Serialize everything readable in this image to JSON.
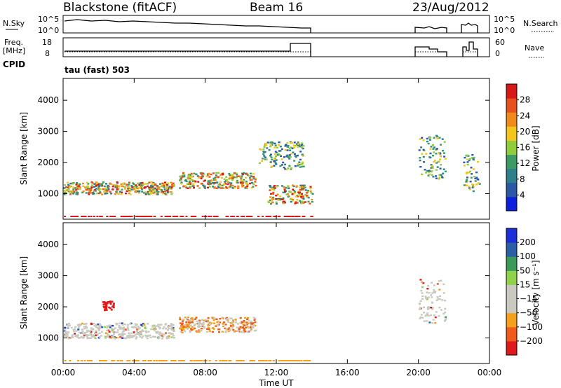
{
  "header": {
    "station": "Blackstone (fitACF)",
    "beam": "Beam 16",
    "date": "23/Aug/2012"
  },
  "side_labels": {
    "nsky": "N.Sky",
    "nsearch": "N.Search",
    "freq_line1": "Freq.",
    "freq_line2": "[MHz]",
    "nave": "Nave",
    "cpid": "CPID",
    "cpid_value": "tau (fast) 503"
  },
  "noise_axis": {
    "left_top": "10^5",
    "left_bottom": "10^0",
    "right_top": "10^5",
    "right_bottom": "10^0"
  },
  "freq_axis": {
    "left_top": "18",
    "left_bottom": "8",
    "right_top": "60",
    "right_bottom": "0"
  },
  "x_axis": {
    "label": "Time UT",
    "ticks": [
      "00:00",
      "04:00",
      "08:00",
      "12:00",
      "16:00",
      "20:00",
      "00:00"
    ],
    "tick_hours": [
      0,
      4,
      8,
      12,
      16,
      20,
      24
    ]
  },
  "colors": {
    "power_scale": [
      "#0b1fdc",
      "#2a58a6",
      "#2e7f8c",
      "#3c9a64",
      "#8fcd3a",
      "#f5c51e",
      "#f08a1a",
      "#e8501c",
      "#d81717"
    ],
    "velocity_scale": [
      "#e01a1a",
      "#f05a1a",
      "#f5a01a",
      "#c9c9bf",
      "#c9c9bf",
      "#8fd34a",
      "#3a9a58",
      "#2a5fa8",
      "#1a2fd8"
    ]
  },
  "chart_data": [
    {
      "type": "heatmap",
      "name": "power",
      "ylabel": "Slant Range [km]",
      "xlabel": "",
      "xlim": [
        0,
        24
      ],
      "ylim": [
        180,
        4700
      ],
      "yticks": [
        1000,
        2000,
        3000,
        4000
      ],
      "colorbar": {
        "label": "Power [dB]",
        "range": [
          0,
          32
        ],
        "ticks": [
          "4",
          "8",
          "12",
          "16",
          "20",
          "24",
          "28"
        ]
      },
      "features": [
        {
          "t0": 0.0,
          "t1": 6.2,
          "r0": 1000,
          "r1": 1400,
          "level": "high"
        },
        {
          "t0": 6.5,
          "t1": 10.8,
          "r0": 1200,
          "r1": 1700,
          "level": "high"
        },
        {
          "t0": 11.5,
          "t1": 14.0,
          "r0": 700,
          "r1": 1300,
          "level": "high"
        },
        {
          "t0": 11.0,
          "t1": 13.5,
          "r0": 1800,
          "r1": 2700,
          "level": "medium"
        },
        {
          "t0": 20.0,
          "t1": 21.5,
          "r0": 1500,
          "r1": 2900,
          "level": "medium"
        },
        {
          "t0": 22.5,
          "t1": 23.4,
          "r0": 1100,
          "r1": 2300,
          "level": "medium"
        }
      ]
    },
    {
      "type": "heatmap",
      "name": "velocity",
      "ylabel": "Slant Range [km]",
      "xlabel": "Time UT",
      "xlim": [
        0,
        24
      ],
      "ylim": [
        180,
        4700
      ],
      "yticks": [
        1000,
        2000,
        3000,
        4000
      ],
      "colorbar": {
        "label": "Velocity [m s⁻¹]",
        "range": [
          -250,
          250
        ],
        "ticks": [
          "200",
          "100",
          "50",
          "15",
          "−15",
          "−50",
          "−100",
          "−200"
        ]
      },
      "features": [
        {
          "t0": 0.0,
          "t1": 6.2,
          "r0": 1000,
          "r1": 1500,
          "level": "near-zero"
        },
        {
          "t0": 6.5,
          "t1": 10.8,
          "r0": 1200,
          "r1": 1700,
          "level": "negative"
        },
        {
          "t0": 2.2,
          "t1": 2.8,
          "r0": 1900,
          "r1": 2200,
          "level": "strong-negative"
        },
        {
          "t0": 20.0,
          "t1": 21.5,
          "r0": 1500,
          "r1": 2900,
          "level": "near-zero"
        }
      ]
    }
  ]
}
